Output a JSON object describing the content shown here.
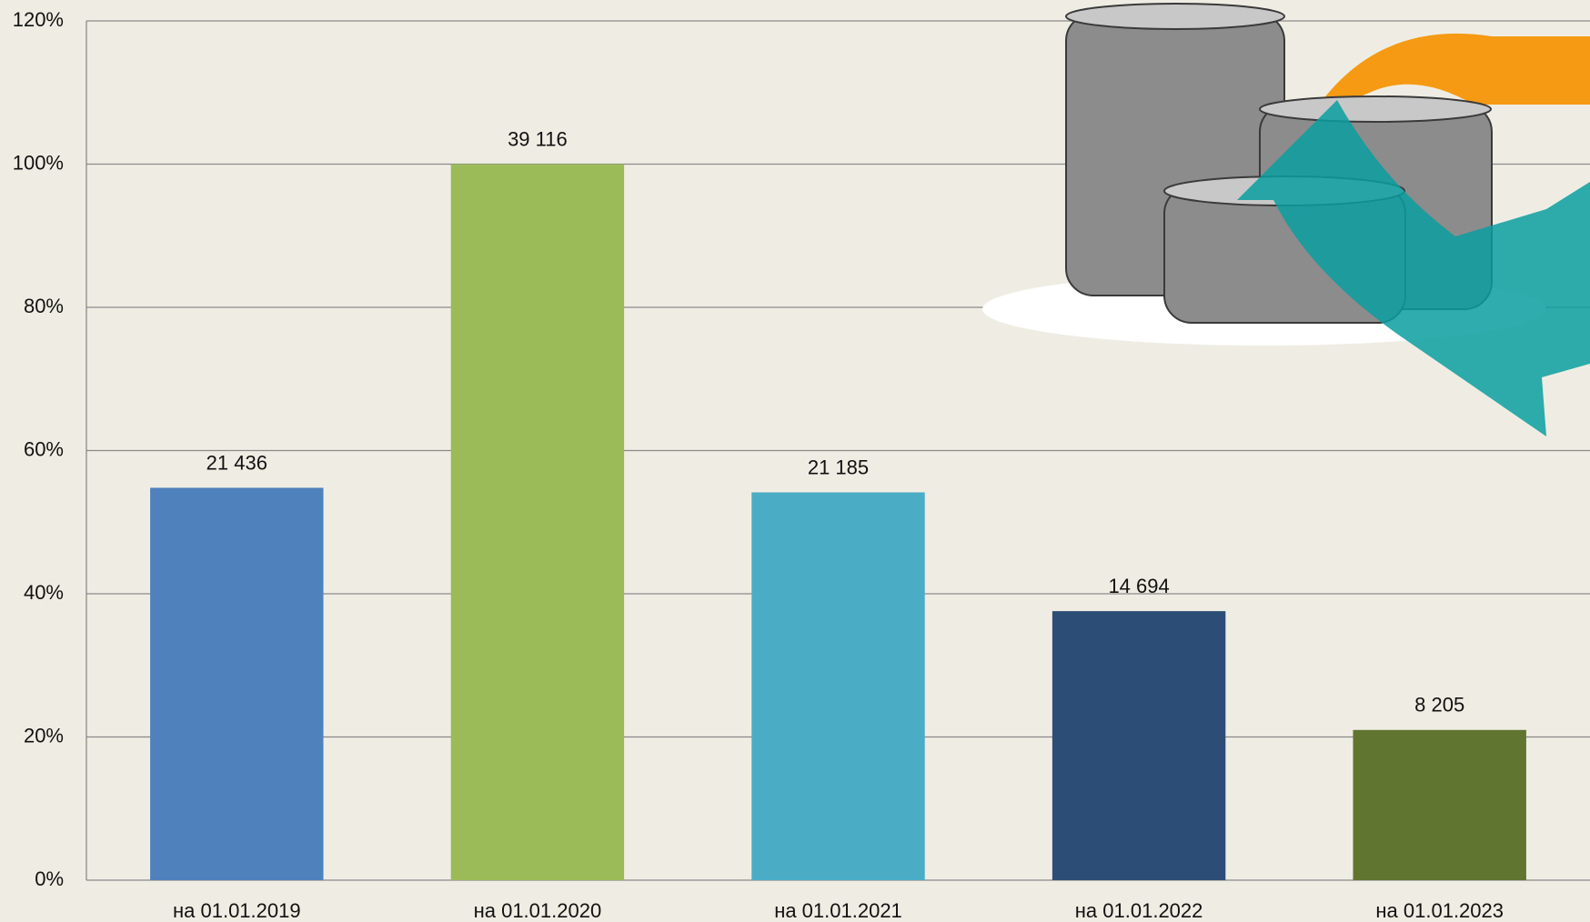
{
  "chart_data": {
    "type": "bar",
    "categories": [
      "на 01.01.2019",
      "на 01.01.2020",
      "на 01.01.2021",
      "на 01.01.2022",
      "на 01.01.2023"
    ],
    "values": [
      54.8,
      100,
      54.16,
      37.57,
      20.98
    ],
    "value_labels": [
      "21 436",
      "39 116",
      "21 185",
      "14 694",
      "8 205"
    ],
    "colors": [
      "#4f81bd",
      "#9bbb59",
      "#4bacc6",
      "#2c4d75",
      "#607530"
    ],
    "ylim": [
      0,
      120
    ],
    "yticks": [
      {
        "value": 0,
        "label": "0%"
      },
      {
        "value": 20,
        "label": "20%"
      },
      {
        "value": 40,
        "label": "40%"
      },
      {
        "value": 60,
        "label": "60%"
      },
      {
        "value": 80,
        "label": "80%"
      },
      {
        "value": 100,
        "label": "100%"
      },
      {
        "value": 120,
        "label": "120%"
      }
    ],
    "grid": true
  }
}
